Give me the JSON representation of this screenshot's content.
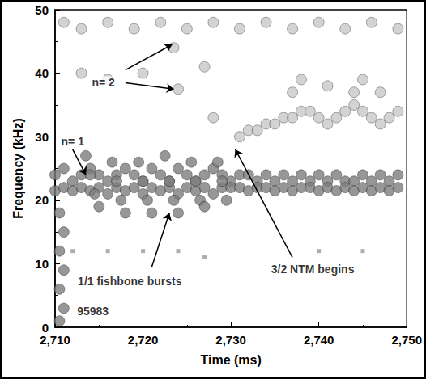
{
  "chart_data": {
    "type": "scatter",
    "x_label": "Time (ms)",
    "y_label": "Frequency (kHz)",
    "xlim": [
      2710,
      2750
    ],
    "xticks": [
      2710,
      2720,
      2730,
      2740,
      2750
    ],
    "ylim": [
      0,
      50
    ],
    "yticks": [
      0,
      10,
      20,
      30,
      40,
      50
    ],
    "grid": false,
    "series": [
      {
        "color": "#7d7d7d",
        "marker": "circle",
        "values": [
          [
            2710,
            24
          ],
          [
            2711,
            25
          ],
          [
            2712,
            23
          ],
          [
            2713,
            24
          ],
          [
            2714,
            25
          ],
          [
            2715,
            24
          ],
          [
            2716,
            23
          ],
          [
            2717,
            24
          ],
          [
            2718,
            25
          ],
          [
            2719,
            24
          ],
          [
            2720,
            23
          ],
          [
            2721,
            25
          ],
          [
            2722,
            24
          ],
          [
            2723,
            23
          ],
          [
            2724,
            25
          ],
          [
            2725,
            24
          ],
          [
            2726,
            23
          ],
          [
            2727,
            24
          ],
          [
            2728,
            25
          ],
          [
            2729,
            24
          ],
          [
            2730,
            23
          ],
          [
            2731,
            24
          ],
          [
            2732,
            24
          ],
          [
            2733,
            23
          ],
          [
            2734,
            24
          ],
          [
            2735,
            23
          ],
          [
            2736,
            24
          ],
          [
            2737,
            23
          ],
          [
            2738,
            24
          ],
          [
            2739,
            23
          ],
          [
            2740,
            24
          ],
          [
            2741,
            23
          ],
          [
            2742,
            24
          ],
          [
            2743,
            23
          ],
          [
            2744,
            23
          ],
          [
            2745,
            24
          ],
          [
            2746,
            23
          ],
          [
            2747,
            24
          ],
          [
            2748,
            23
          ],
          [
            2749,
            24
          ],
          [
            2710,
            21.5
          ],
          [
            2711,
            22
          ],
          [
            2712,
            21.5
          ],
          [
            2713,
            22
          ],
          [
            2714,
            21.5
          ],
          [
            2715,
            22
          ],
          [
            2716,
            21
          ],
          [
            2717,
            22
          ],
          [
            2718,
            21.5
          ],
          [
            2719,
            22
          ],
          [
            2720,
            21
          ],
          [
            2721,
            22
          ],
          [
            2722,
            21.5
          ],
          [
            2723,
            22
          ],
          [
            2724,
            21
          ],
          [
            2725,
            22
          ],
          [
            2726,
            21.5
          ],
          [
            2727,
            22
          ],
          [
            2728,
            21
          ],
          [
            2729,
            22
          ],
          [
            2730,
            22
          ],
          [
            2731,
            22
          ],
          [
            2732,
            21.5
          ],
          [
            2733,
            22
          ],
          [
            2734,
            22
          ],
          [
            2735,
            21.5
          ],
          [
            2736,
            22
          ],
          [
            2737,
            21.5
          ],
          [
            2738,
            22
          ],
          [
            2739,
            22
          ],
          [
            2740,
            21.5
          ],
          [
            2741,
            22
          ],
          [
            2742,
            21.5
          ],
          [
            2743,
            22
          ],
          [
            2744,
            21.5
          ],
          [
            2745,
            22
          ],
          [
            2746,
            21.5
          ],
          [
            2747,
            22
          ],
          [
            2748,
            21.5
          ],
          [
            2749,
            22
          ],
          [
            2710.5,
            18
          ],
          [
            2711,
            15
          ],
          [
            2710.5,
            12
          ],
          [
            2711,
            9
          ],
          [
            2710.5,
            6
          ],
          [
            2711,
            3
          ],
          [
            2710.5,
            1
          ]
        ]
      },
      {
        "color": "#7d7d7d",
        "marker": "circle",
        "values": [
          [
            2713.5,
            27
          ],
          [
            2714,
            24
          ],
          [
            2714.5,
            21
          ],
          [
            2715,
            19
          ],
          [
            2716.5,
            26
          ],
          [
            2717,
            23
          ],
          [
            2717.5,
            20
          ],
          [
            2718,
            18
          ],
          [
            2719.5,
            26
          ],
          [
            2720,
            23
          ],
          [
            2720.5,
            20
          ],
          [
            2721,
            18
          ],
          [
            2722.5,
            27
          ],
          [
            2723,
            23
          ],
          [
            2723.5,
            20
          ],
          [
            2724,
            18
          ],
          [
            2725.5,
            26
          ],
          [
            2726,
            23
          ],
          [
            2726.5,
            20
          ],
          [
            2727,
            19
          ],
          [
            2728.5,
            26
          ],
          [
            2729,
            23
          ],
          [
            2729.5,
            20
          ]
        ]
      },
      {
        "color": "#c8c8c8",
        "marker": "circle",
        "values": [
          [
            2728,
            33
          ],
          [
            2731,
            30
          ],
          [
            2732,
            31
          ],
          [
            2733,
            31
          ],
          [
            2734,
            32
          ],
          [
            2735,
            32
          ],
          [
            2736,
            33
          ],
          [
            2737,
            33
          ],
          [
            2738,
            34
          ],
          [
            2739,
            34
          ],
          [
            2740,
            33
          ],
          [
            2741,
            32
          ],
          [
            2742,
            33
          ],
          [
            2743,
            34
          ],
          [
            2744,
            35
          ],
          [
            2745,
            34
          ],
          [
            2746,
            33
          ],
          [
            2747,
            32
          ],
          [
            2748,
            33
          ],
          [
            2749,
            34
          ],
          [
            2737,
            37
          ],
          [
            2738,
            39
          ],
          [
            2741,
            38
          ],
          [
            2744,
            37
          ],
          [
            2745,
            39
          ],
          [
            2747,
            37
          ],
          [
            2723.5,
            44
          ],
          [
            2724,
            37.5
          ],
          [
            2713,
            40
          ],
          [
            2716,
            39
          ],
          [
            2720,
            40
          ],
          [
            2727,
            41
          ]
        ]
      },
      {
        "color": "#c8c8c8",
        "marker": "circle",
        "values": [
          [
            2711,
            48
          ],
          [
            2713,
            47
          ],
          [
            2716,
            48
          ],
          [
            2719,
            47
          ],
          [
            2722,
            48
          ],
          [
            2725,
            47
          ],
          [
            2728,
            48
          ],
          [
            2731,
            47
          ],
          [
            2734,
            48
          ],
          [
            2737,
            47
          ],
          [
            2740,
            48
          ],
          [
            2743,
            47
          ],
          [
            2746,
            48
          ],
          [
            2749,
            47
          ]
        ]
      },
      {
        "color": "#9a9a9a",
        "marker": "rect",
        "values": [
          [
            2712,
            12
          ],
          [
            2716,
            12
          ],
          [
            2720,
            12
          ],
          [
            2724,
            12
          ],
          [
            2727,
            11
          ],
          [
            2740,
            12
          ],
          [
            2745,
            12
          ]
        ]
      }
    ],
    "annotations": [
      {
        "text": "n= 2",
        "x": 2715.5,
        "y": 38.5,
        "arrows": [
          [
            2718,
            40.5,
            2723.3,
            44.5
          ],
          [
            2718,
            38.5,
            2723.5,
            37.5
          ]
        ]
      },
      {
        "text": "n= 1",
        "x": 2712,
        "y": 29.3,
        "arrows": [
          [
            2712,
            28,
            2713.5,
            24
          ]
        ]
      },
      {
        "text": "1/1 fishbone bursts",
        "x": 2718.5,
        "y": 7.3,
        "arrows": [
          [
            2721,
            9.5,
            2723,
            18
          ]
        ]
      },
      {
        "text": "3/2 NTM begins",
        "x": 2739.3,
        "y": 9.2,
        "arrows": [
          [
            2737,
            11,
            2730.5,
            28
          ]
        ]
      },
      {
        "text": "95983",
        "x": 2714.3,
        "y": 2.5,
        "arrows": []
      }
    ]
  }
}
